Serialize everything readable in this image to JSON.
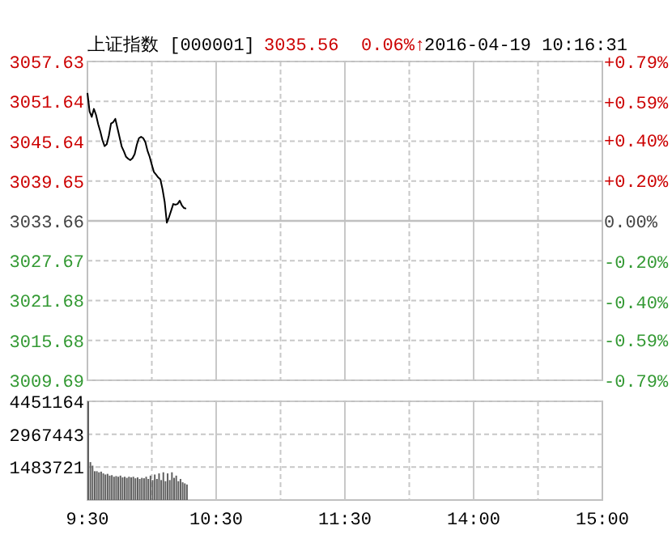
{
  "chart_data": [
    {
      "type": "line",
      "title": "上证指数 [000001]",
      "annotations": [
        "3035.56",
        "0.06%↑",
        "2016-04-19 10:16:31"
      ],
      "categories": [
        null,
        null,
        null,
        null,
        null,
        null,
        null,
        null,
        null,
        null,
        null,
        null,
        null,
        null,
        null,
        null,
        null,
        null,
        null,
        null,
        null,
        null,
        null,
        null,
        null,
        null,
        null,
        null,
        null,
        null,
        null,
        null,
        null,
        null,
        null,
        null,
        null,
        null,
        null,
        null,
        null,
        null,
        null,
        null,
        null,
        null,
        null,
        null,
        null,
        null,
        null,
        null,
        null,
        null,
        null,
        null,
        null,
        null,
        null,
        null,
        null,
        null,
        null,
        null,
        null,
        null,
        null,
        null,
        null,
        null,
        null,
        null,
        null,
        null,
        null,
        null,
        null,
        null,
        null,
        null,
        null,
        null,
        null,
        null,
        null,
        null,
        null,
        null,
        null,
        null,
        null,
        null,
        null,
        null,
        null,
        null,
        null,
        null,
        null,
        null,
        null,
        null,
        null,
        null,
        null,
        null,
        null,
        null,
        null,
        null,
        null,
        null,
        null,
        null,
        null,
        null,
        null,
        null,
        null,
        null,
        null,
        null,
        null,
        null,
        null,
        null,
        null,
        null,
        null,
        null,
        null,
        null,
        null,
        null,
        null,
        null,
        null,
        null,
        null,
        null,
        null,
        null,
        null,
        null,
        null,
        null,
        null,
        null,
        null,
        null,
        null,
        null,
        null,
        null,
        null,
        null,
        null,
        null,
        null,
        null,
        null,
        null,
        null,
        null,
        null,
        null,
        null,
        null,
        null,
        null,
        null,
        null,
        null,
        null,
        null,
        null,
        null,
        null,
        null,
        null,
        null,
        null,
        null,
        null,
        null,
        null,
        null,
        null,
        null,
        null,
        null,
        null,
        null,
        null,
        null,
        null,
        null,
        null,
        null,
        null,
        null,
        null,
        null,
        null,
        null,
        null,
        null,
        null,
        null,
        null,
        null,
        null,
        null,
        null,
        null,
        null,
        null,
        null,
        null,
        null,
        null,
        null,
        null,
        null,
        null,
        null,
        null,
        null,
        null,
        null,
        null,
        null,
        null,
        null,
        null,
        null,
        null,
        null,
        null,
        null,
        null
      ],
      "ylim": [
        3009.69,
        3057.63
      ],
      "yticks": [
        3057.63,
        3051.64,
        3045.64,
        3039.65,
        3033.66,
        3027.67,
        3021.68,
        3015.68,
        3009.69
      ],
      "y2lim": [
        -0.79,
        0.79
      ],
      "y2ticks": [
        {
          "value": 0.79,
          "label": "+0.79%"
        },
        {
          "value": 0.59,
          "label": "+0.59%"
        },
        {
          "value": 0.4,
          "label": "+0.40%"
        },
        {
          "value": 0.2,
          "label": "+0.20%"
        },
        {
          "value": 0,
          "label": "0.00%"
        },
        {
          "value": -0.2,
          "label": "-0.20%"
        },
        {
          "value": -0.4,
          "label": "-0.40%"
        },
        {
          "value": -0.59,
          "label": "-0.59%"
        },
        {
          "value": -0.79,
          "label": "-0.79%"
        }
      ],
      "ref_lines": [
        {
          "axis": "y",
          "value": 3033.66,
          "color": "#c0c0c0"
        }
      ],
      "grid": true,
      "tick_labels": "y",
      "series": [
        {
          "color": "#000000",
          "values": [
            3052.9,
            3050.1,
            3049.3,
            3050.5,
            3049.6,
            3048.2,
            3047.1,
            3045.8,
            3044.9,
            3045.2,
            3046.5,
            3048.3,
            3048.5,
            3049.0,
            3047.6,
            3046.2,
            3044.8,
            3044.1,
            3043.3,
            3043.0,
            3042.8,
            3043.1,
            3043.7,
            3045.1,
            3046.1,
            3046.3,
            3046.1,
            3045.5,
            3044.2,
            3043.3,
            3042.1,
            3041.0,
            3040.6,
            3040.2,
            3039.9,
            3038.4,
            3036.5,
            3033.4,
            3034.2,
            3035.2,
            3036.2,
            3036.1,
            3036.2,
            3036.7,
            3036.0,
            3035.6,
            3035.5,
            null,
            null,
            null,
            null,
            null,
            null,
            null,
            null,
            null,
            null,
            null,
            null,
            null,
            null,
            null,
            null,
            null,
            null,
            null,
            null,
            null,
            null,
            null,
            null,
            null,
            null,
            null,
            null,
            null,
            null,
            null,
            null,
            null,
            null,
            null,
            null,
            null,
            null,
            null,
            null,
            null,
            null,
            null,
            null,
            null,
            null,
            null,
            null,
            null,
            null,
            null,
            null,
            null,
            null,
            null,
            null,
            null,
            null,
            null,
            null,
            null,
            null,
            null,
            null,
            null,
            null,
            null,
            null,
            null,
            null,
            null,
            null,
            null,
            null,
            null,
            null,
            null,
            null,
            null,
            null,
            null,
            null,
            null,
            null,
            null,
            null,
            null,
            null,
            null,
            null,
            null,
            null,
            null,
            null,
            null,
            null,
            null,
            null,
            null,
            null,
            null,
            null,
            null,
            null,
            null,
            null,
            null,
            null,
            null,
            null,
            null,
            null,
            null,
            null,
            null,
            null,
            null,
            null,
            null,
            null,
            null,
            null,
            null,
            null,
            null,
            null,
            null,
            null,
            null,
            null,
            null,
            null,
            null,
            null,
            null,
            null,
            null,
            null,
            null,
            null,
            null,
            null,
            null,
            null,
            null,
            null,
            null,
            null,
            null,
            null,
            null,
            null,
            null,
            null,
            null,
            null,
            null,
            null,
            null,
            null,
            null,
            null,
            null,
            null,
            null,
            null,
            null,
            null,
            null,
            null,
            null,
            null,
            null,
            null,
            null,
            null,
            null,
            null,
            null,
            null,
            null,
            null,
            null,
            null,
            null,
            null,
            null,
            null,
            null,
            null,
            null,
            null,
            null,
            null
          ]
        }
      ]
    },
    {
      "type": "bar",
      "categories": [
        "9:30",
        null,
        null,
        null,
        null,
        null,
        null,
        null,
        null,
        null,
        null,
        null,
        null,
        null,
        null,
        null,
        null,
        null,
        null,
        null,
        null,
        null,
        null,
        null,
        null,
        null,
        null,
        null,
        null,
        null,
        null,
        null,
        null,
        null,
        null,
        null,
        null,
        null,
        null,
        null,
        null,
        null,
        null,
        null,
        null,
        null,
        null,
        null,
        null,
        null,
        null,
        null,
        null,
        null,
        null,
        null,
        null,
        null,
        null,
        null,
        "10:30",
        null,
        null,
        null,
        null,
        null,
        null,
        null,
        null,
        null,
        null,
        null,
        null,
        null,
        null,
        null,
        null,
        null,
        null,
        null,
        null,
        null,
        null,
        null,
        null,
        null,
        null,
        null,
        null,
        null,
        null,
        null,
        null,
        null,
        null,
        null,
        null,
        null,
        null,
        null,
        null,
        null,
        null,
        null,
        null,
        null,
        null,
        null,
        null,
        null,
        null,
        null,
        null,
        null,
        null,
        null,
        null,
        null,
        null,
        null,
        "11:30",
        null,
        null,
        null,
        null,
        null,
        null,
        null,
        null,
        null,
        null,
        null,
        null,
        null,
        null,
        null,
        null,
        null,
        null,
        null,
        null,
        null,
        null,
        null,
        null,
        null,
        null,
        null,
        null,
        null,
        null,
        null,
        null,
        null,
        null,
        null,
        null,
        null,
        null,
        null,
        null,
        null,
        null,
        null,
        null,
        null,
        null,
        null,
        null,
        null,
        null,
        null,
        null,
        null,
        null,
        null,
        null,
        null,
        null,
        null,
        "14:00",
        null,
        null,
        null,
        null,
        null,
        null,
        null,
        null,
        null,
        null,
        null,
        null,
        null,
        null,
        null,
        null,
        null,
        null,
        null,
        null,
        null,
        null,
        null,
        null,
        null,
        null,
        null,
        null,
        null,
        null,
        null,
        null,
        null,
        null,
        null,
        null,
        null,
        null,
        null,
        null,
        null,
        null,
        null,
        null,
        null,
        null,
        null,
        null,
        null,
        null,
        null,
        null,
        null,
        null,
        null,
        null,
        null,
        null,
        null,
        "15:00"
      ],
      "ylim": [
        0,
        4451164
      ],
      "yticks": [
        4451164,
        2967443,
        1483721
      ],
      "grid": true,
      "series": [
        {
          "color": "#606060",
          "values": [
            4450000,
            1710000,
            1550000,
            1300000,
            1300000,
            1250000,
            1280000,
            1200000,
            1150000,
            1180000,
            1100000,
            1120000,
            1050000,
            1080000,
            1050000,
            1100000,
            1020000,
            1050000,
            1000000,
            1050000,
            1020000,
            1050000,
            980000,
            1020000,
            950000,
            1000000,
            980000,
            1050000,
            950000,
            1100000,
            900000,
            1150000,
            950000,
            1200000,
            900000,
            1250000,
            850000,
            1200000,
            900000,
            1250000,
            1000000,
            1100000,
            850000,
            950000,
            800000,
            750000,
            700000,
            null,
            null,
            null,
            null,
            null,
            null,
            null,
            null,
            null,
            null,
            null,
            null,
            null,
            null,
            null,
            null,
            null,
            null,
            null,
            null,
            null,
            null,
            null,
            null,
            null,
            null,
            null,
            null,
            null,
            null,
            null,
            null,
            null,
            null,
            null,
            null,
            null,
            null,
            null,
            null,
            null,
            null,
            null,
            null,
            null,
            null,
            null,
            null,
            null,
            null,
            null,
            null,
            null,
            null,
            null,
            null,
            null,
            null,
            null,
            null,
            null,
            null,
            null,
            null,
            null,
            null,
            null,
            null,
            null,
            null,
            null,
            null,
            null,
            null,
            null,
            null,
            null,
            null,
            null,
            null,
            null,
            null,
            null,
            null,
            null,
            null,
            null,
            null,
            null,
            null,
            null,
            null,
            null,
            null,
            null,
            null,
            null,
            null,
            null,
            null,
            null,
            null,
            null,
            null,
            null,
            null,
            null,
            null,
            null,
            null,
            null,
            null,
            null,
            null,
            null,
            null,
            null,
            null,
            null,
            null,
            null,
            null,
            null,
            null,
            null,
            null,
            null,
            null,
            null,
            null,
            null,
            null,
            null,
            null,
            null,
            null,
            null,
            null,
            null,
            null,
            null,
            null,
            null,
            null,
            null,
            null,
            null,
            null,
            null,
            null,
            null,
            null,
            null,
            null,
            null,
            null,
            null,
            null,
            null,
            null,
            null,
            null,
            null,
            null,
            null,
            null,
            null,
            null,
            null,
            null,
            null,
            null,
            null,
            null,
            null,
            null,
            null,
            null,
            null,
            null,
            null,
            null,
            null,
            null,
            null,
            null,
            null,
            null,
            null,
            null,
            null,
            null,
            null,
            null
          ]
        }
      ]
    }
  ]
}
